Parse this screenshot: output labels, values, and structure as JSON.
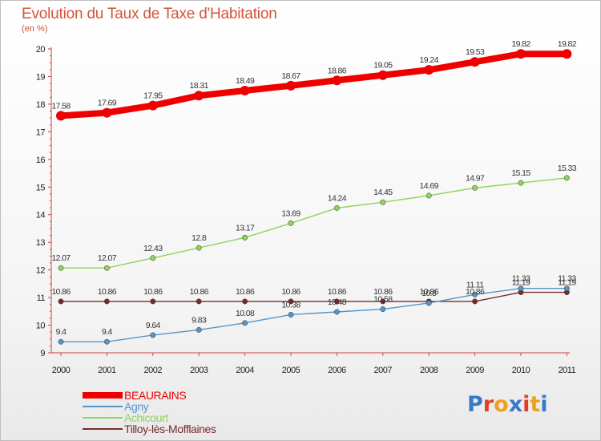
{
  "header": {
    "title": "Evolution du Taux de Taxe d'Habitation",
    "subtitle": "(en %)"
  },
  "logo": {
    "letters": [
      "P",
      "r",
      "o",
      "x",
      "i",
      "t",
      "i"
    ],
    "colors": [
      "#3a78c8",
      "#e0402a",
      "#f0a020",
      "#3a78c8",
      "#e0402a",
      "#f0a020",
      "#3a78c8"
    ]
  },
  "chart_data": {
    "type": "line",
    "x": [
      "2000",
      "2001",
      "2002",
      "2003",
      "2004",
      "2005",
      "2006",
      "2007",
      "2008",
      "2009",
      "2010",
      "2011"
    ],
    "ylim": [
      9,
      20
    ],
    "yticks": [
      9,
      10,
      11,
      12,
      13,
      14,
      15,
      16,
      17,
      18,
      19,
      20
    ],
    "grid": false,
    "legend_position": "bottom-left",
    "series": [
      {
        "name": "BEAURAINS",
        "color": "#ee0000",
        "values": [
          17.58,
          17.69,
          17.95,
          18.31,
          18.49,
          18.67,
          18.86,
          19.05,
          19.24,
          19.53,
          19.82,
          19.82
        ],
        "labels": [
          "17.58",
          "17.69",
          "17.95",
          "18.31",
          "18.49",
          "18.67",
          "18.86",
          "19.05",
          "19.24",
          "19.53",
          "19.82",
          "19.82"
        ]
      },
      {
        "name": "Agny",
        "color": "#5596c9",
        "values": [
          9.4,
          9.4,
          9.64,
          9.83,
          10.08,
          10.38,
          10.48,
          10.58,
          10.8,
          11.11,
          11.33,
          11.33
        ],
        "labels": [
          "9.4",
          "9.4",
          "9.64",
          "9.83",
          "10.08",
          "10.38",
          "10.48",
          "10.58",
          "10.8",
          "11.11",
          "11.33",
          "11.33"
        ]
      },
      {
        "name": "Achicourt",
        "color": "#8ed35a",
        "values": [
          12.07,
          12.07,
          12.43,
          12.8,
          13.17,
          13.69,
          14.24,
          14.45,
          14.69,
          14.97,
          15.15,
          15.33
        ],
        "labels": [
          "12.07",
          "12.07",
          "12.43",
          "12.8",
          "13.17",
          "13.69",
          "14.24",
          "14.45",
          "14.69",
          "14.97",
          "15.15",
          "15.33"
        ]
      },
      {
        "name": "Tilloy-lès-Mofflaines",
        "color": "#7a2a2a",
        "values": [
          10.86,
          10.86,
          10.86,
          10.86,
          10.86,
          10.86,
          10.86,
          10.86,
          10.86,
          10.86,
          11.19,
          11.19
        ],
        "labels": [
          "10.86",
          "10.86",
          "10.86",
          "10.86",
          "10.86",
          "10.86",
          "10.86",
          "10.86",
          "10.86",
          "10.86",
          "11.19",
          "11.19"
        ]
      }
    ]
  }
}
